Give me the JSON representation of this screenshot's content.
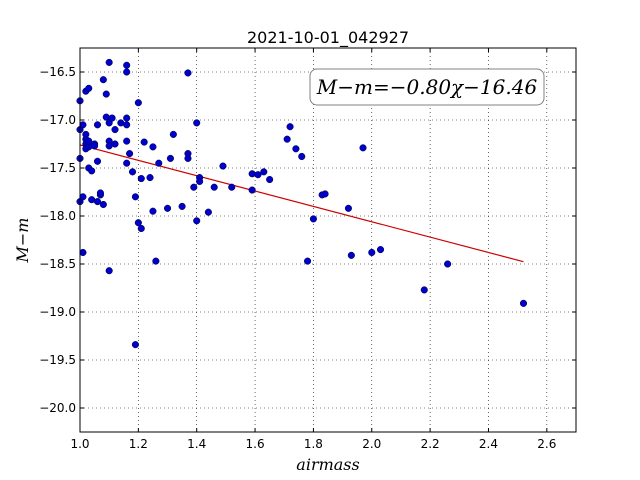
{
  "chart_data": {
    "type": "scatter",
    "title": "2021-10-01_042927",
    "xlabel": "airmass",
    "ylabel": "M−m",
    "xlim": [
      1.0,
      2.7
    ],
    "ylim": [
      -20.25,
      -16.25
    ],
    "y_inverted": true,
    "xticks": [
      1.0,
      1.2,
      1.4,
      1.6,
      1.8,
      2.0,
      2.2,
      2.4,
      2.6
    ],
    "xtick_labels": [
      "1.0",
      "1.2",
      "1.4",
      "1.6",
      "1.8",
      "2.0",
      "2.2",
      "2.4",
      "2.6"
    ],
    "yticks": [
      -16.5,
      -17.0,
      -17.5,
      -18.0,
      -18.5,
      -19.0,
      -19.5,
      -20.0
    ],
    "ytick_labels": [
      "−16.5",
      "−17.0",
      "−17.5",
      "−18.0",
      "−18.5",
      "−19.0",
      "−19.5",
      "−20.0"
    ],
    "grid": true,
    "annotation": "M−m=−0.80χ−16.46",
    "annotation_position": "top-right",
    "colors": {
      "points": "#0000cc",
      "fit": "#cc0000"
    },
    "fit": {
      "slope": -0.8,
      "intercept": -16.46,
      "x_range": [
        1.0,
        2.52
      ]
    },
    "series": [
      {
        "values": [
          [
            1.0,
            -16.8
          ],
          [
            1.0,
            -17.1
          ],
          [
            1.01,
            -17.05
          ],
          [
            1.0,
            -17.85
          ],
          [
            1.01,
            -17.8
          ],
          [
            1.01,
            -18.38
          ],
          [
            1.0,
            -17.4
          ],
          [
            1.02,
            -16.7
          ],
          [
            1.03,
            -16.67
          ],
          [
            1.02,
            -17.15
          ],
          [
            1.02,
            -17.2
          ],
          [
            1.02,
            -17.25
          ],
          [
            1.02,
            -17.3
          ],
          [
            1.03,
            -17.28
          ],
          [
            1.03,
            -17.22
          ],
          [
            1.03,
            -17.5
          ],
          [
            1.04,
            -17.53
          ],
          [
            1.04,
            -17.83
          ],
          [
            1.05,
            -17.25
          ],
          [
            1.05,
            -17.27
          ],
          [
            1.06,
            -17.43
          ],
          [
            1.06,
            -17.05
          ],
          [
            1.06,
            -17.85
          ],
          [
            1.07,
            -17.78
          ],
          [
            1.07,
            -17.76
          ],
          [
            1.08,
            -16.58
          ],
          [
            1.08,
            -17.88
          ],
          [
            1.09,
            -16.73
          ],
          [
            1.09,
            -16.97
          ],
          [
            1.1,
            -16.4
          ],
          [
            1.1,
            -17.03
          ],
          [
            1.1,
            -17.22
          ],
          [
            1.1,
            -17.27
          ],
          [
            1.1,
            -18.57
          ],
          [
            1.11,
            -16.98
          ],
          [
            1.12,
            -17.1
          ],
          [
            1.12,
            -17.25
          ],
          [
            1.14,
            -17.03
          ],
          [
            1.16,
            -16.43
          ],
          [
            1.16,
            -16.5
          ],
          [
            1.16,
            -16.98
          ],
          [
            1.16,
            -17.05
          ],
          [
            1.16,
            -17.22
          ],
          [
            1.16,
            -17.45
          ],
          [
            1.17,
            -17.35
          ],
          [
            1.18,
            -17.54
          ],
          [
            1.19,
            -17.8
          ],
          [
            1.19,
            -19.34
          ],
          [
            1.2,
            -16.82
          ],
          [
            1.2,
            -18.07
          ],
          [
            1.21,
            -18.13
          ],
          [
            1.22,
            -17.23
          ],
          [
            1.21,
            -17.61
          ],
          [
            1.24,
            -17.6
          ],
          [
            1.25,
            -17.28
          ],
          [
            1.25,
            -17.95
          ],
          [
            1.26,
            -18.47
          ],
          [
            1.27,
            -17.45
          ],
          [
            1.3,
            -17.92
          ],
          [
            1.31,
            -17.4
          ],
          [
            1.32,
            -17.15
          ],
          [
            1.35,
            -17.9
          ],
          [
            1.37,
            -16.51
          ],
          [
            1.37,
            -17.35
          ],
          [
            1.37,
            -17.4
          ],
          [
            1.39,
            -17.7
          ],
          [
            1.4,
            -17.03
          ],
          [
            1.4,
            -18.05
          ],
          [
            1.41,
            -17.6
          ],
          [
            1.41,
            -17.64
          ],
          [
            1.44,
            -17.96
          ],
          [
            1.46,
            -17.7
          ],
          [
            1.49,
            -17.48
          ],
          [
            1.52,
            -17.7
          ],
          [
            1.59,
            -17.56
          ],
          [
            1.59,
            -17.73
          ],
          [
            1.61,
            -17.57
          ],
          [
            1.63,
            -17.54
          ],
          [
            1.65,
            -17.62
          ],
          [
            1.71,
            -17.2
          ],
          [
            1.72,
            -17.07
          ],
          [
            1.74,
            -17.3
          ],
          [
            1.76,
            -17.38
          ],
          [
            1.78,
            -18.47
          ],
          [
            1.8,
            -18.03
          ],
          [
            1.83,
            -17.78
          ],
          [
            1.84,
            -17.77
          ],
          [
            1.92,
            -17.92
          ],
          [
            1.93,
            -18.41
          ],
          [
            1.97,
            -17.29
          ],
          [
            2.0,
            -18.38
          ],
          [
            2.03,
            -18.35
          ],
          [
            2.18,
            -18.77
          ],
          [
            2.26,
            -18.5
          ],
          [
            2.52,
            -18.91
          ]
        ]
      }
    ]
  }
}
